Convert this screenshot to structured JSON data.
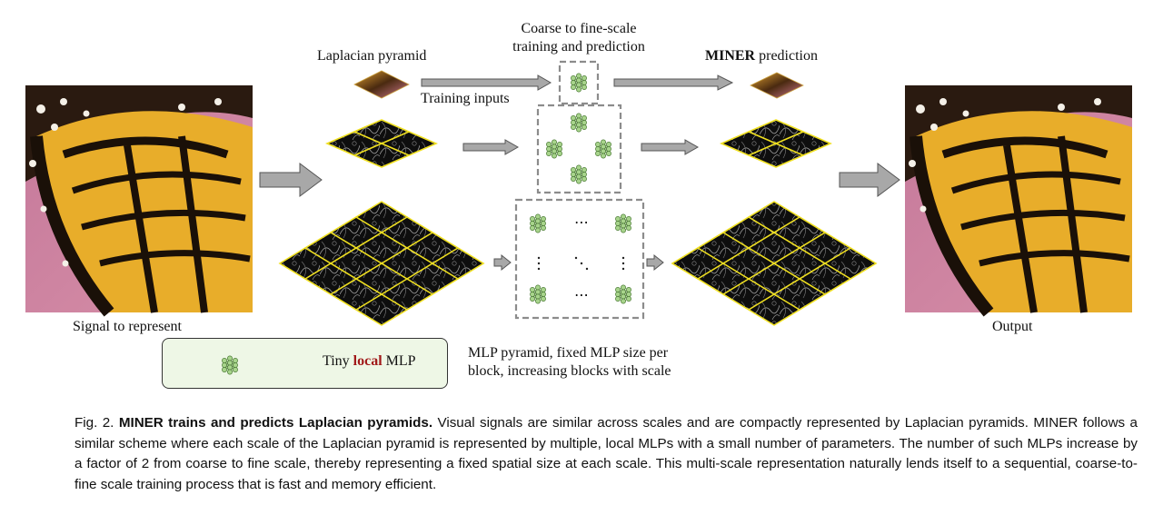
{
  "figure": {
    "label_laplacian_pyramid": "Laplacian pyramid",
    "label_coarse_to_fine_line1": "Coarse to fine-scale",
    "label_coarse_to_fine_line2": "training and prediction",
    "label_miner_bold": "MINER",
    "label_prediction": "prediction",
    "label_training_inputs": "Training inputs",
    "label_signal": "Signal to represent",
    "label_output": "Output",
    "label_mlp_pyramid_line1": "MLP pyramid, fixed MLP size per",
    "label_mlp_pyramid_line2": "block, increasing blocks with scale",
    "legend": {
      "tiny": "Tiny",
      "local": "local",
      "mlp": "MLP"
    },
    "dots": "⋯",
    "colors": {
      "grid_line": "#f0e020",
      "mlp_node": "#a8d48c",
      "mlp_stroke": "#4a7a34",
      "legend_arrow": "#3f6b22",
      "arrow_fill": "#a8a8a8",
      "dashed_box": "#8c8c8c"
    }
  },
  "caption": {
    "fig_label": "Fig. 2.",
    "bold_title": "MINER trains and predicts Laplacian pyramids.",
    "body": "Visual signals are similar across scales and are compactly represented by Laplacian pyramids. MINER follows a similar scheme where each scale of the Laplacian pyramid is represented by multiple, local MLPs with a small number of parameters. The number of such MLPs increase by a factor of 2 from coarse to fine scale, thereby representing a fixed spatial size at each scale. This multi-scale representation naturally lends itself to a sequential, coarse-to-fine scale training process that is fast and memory efficient."
  }
}
